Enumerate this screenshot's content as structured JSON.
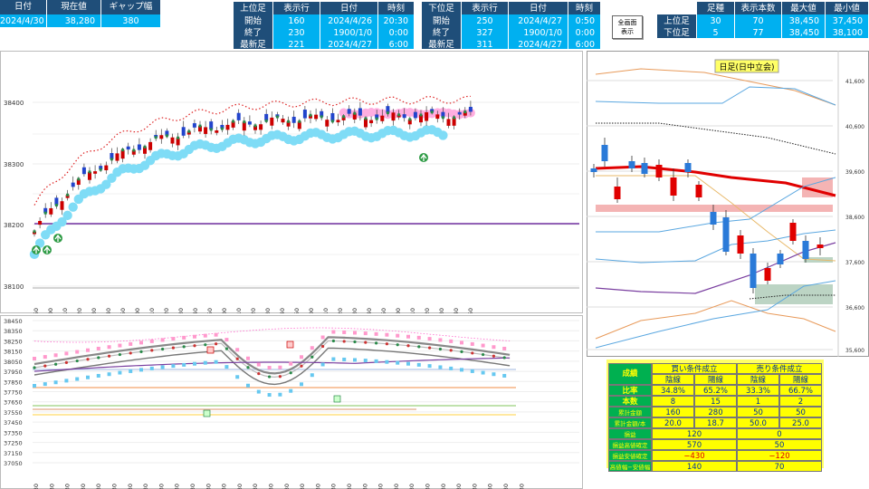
{
  "top_left": {
    "headers": [
      "日付",
      "現在値",
      "ギャップ幅"
    ],
    "values": [
      "2024/4/30",
      "38,280",
      "380"
    ]
  },
  "upper_table": {
    "headers": [
      "上位足",
      "表示行",
      "日付",
      "時刻"
    ],
    "rows": [
      {
        "label": "開始",
        "rows": "160",
        "date": "2024/4/26",
        "time": "20:30"
      },
      {
        "label": "終了",
        "rows": "230",
        "date": "1900/1/0",
        "time": "0:00"
      },
      {
        "label": "最新足",
        "rows": "221",
        "date": "2024/4/27",
        "time": "6:00"
      }
    ]
  },
  "lower_table": {
    "headers": [
      "下位足",
      "表示行",
      "日付",
      "時刻"
    ],
    "rows": [
      {
        "label": "開始",
        "rows": "250",
        "date": "2024/4/27",
        "time": "0:50"
      },
      {
        "label": "終了",
        "rows": "327",
        "date": "1900/1/0",
        "time": "0:00"
      },
      {
        "label": "最新足",
        "rows": "311",
        "date": "2024/4/27",
        "time": "6:00"
      }
    ]
  },
  "mode_button": {
    "line1": "全画面",
    "line2": "表示"
  },
  "summary_table": {
    "headers": [
      "足種",
      "表示本数",
      "最大値",
      "最小値"
    ],
    "rows": [
      {
        "label": "上位足",
        "type": "30",
        "count": "70",
        "max": "38,450",
        "min": "37,450"
      },
      {
        "label": "下位足",
        "type": "5",
        "count": "77",
        "max": "38,450",
        "min": "38,100"
      }
    ]
  },
  "chart_upper": {
    "y_ticks": [
      "38400",
      "38300",
      "38200",
      "38100"
    ],
    "x_ticks": [
      "0:50",
      "1:00",
      "1:10",
      "1:20",
      "1:30",
      "1:40",
      "1:50",
      "2:00",
      "2:10",
      "2:20",
      "2:30",
      "2:40",
      "2:50",
      "3:00",
      "3:10",
      "3:20",
      "3:30",
      "3:40",
      "3:50",
      "4:00",
      "4:10",
      "4:20",
      "4:30",
      "4:40",
      "4:50",
      "5:00",
      "5:10",
      "5:20",
      "5:30",
      "5:40",
      "5:50"
    ],
    "colors": {
      "up": "#cc0000",
      "down": "#2244cc",
      "mid_line": "#7030a0",
      "band_upper": "#ff99dd",
      "band_lower": "#66ddff"
    }
  },
  "chart_lower": {
    "y_ticks": [
      "38450",
      "38350",
      "38250",
      "38150",
      "38050",
      "37950",
      "37850",
      "37750",
      "37650",
      "37550",
      "37450",
      "37350",
      "37250",
      "37150",
      "37050"
    ],
    "x_ticks": [
      "20:30",
      "21:30",
      "22:30",
      "23:30",
      "0:30",
      "1:30",
      "2:30",
      "3:30",
      "4:30",
      "5:30",
      "8:30",
      "9:30",
      "10:30",
      "11:30",
      "12:30",
      "13:30",
      "14:30",
      "15:30",
      "16:30",
      "17:30",
      "18:30",
      "19:30",
      "20:30",
      "21:30",
      "22:30",
      "23:30",
      "0:30",
      "1:30",
      "2:30",
      "3:30",
      "4:30",
      "5:30"
    ]
  },
  "chart_daily": {
    "title": "日足(日中立会)",
    "y_ticks": [
      "41,600",
      "40,600",
      "39,600",
      "38,600",
      "37,600",
      "36,600",
      "35,600"
    ]
  },
  "stats": {
    "title": "成績",
    "buy_header": "買い条件成立",
    "sell_header": "売り条件成立",
    "sub_headers": [
      "陰線",
      "陽線",
      "陰線",
      "陽線"
    ],
    "rows": [
      {
        "label": "比率",
        "values": [
          "34.8%",
          "65.2%",
          "33.3%",
          "66.7%"
        ]
      },
      {
        "label": "本数",
        "values": [
          "8",
          "15",
          "1",
          "2"
        ]
      },
      {
        "label": "累計金額",
        "values": [
          "160",
          "280",
          "50",
          "50"
        ]
      },
      {
        "label": "累計金額/本",
        "values": [
          "20.0",
          "18.7",
          "50.0",
          "25.0"
        ]
      }
    ],
    "merged_rows": [
      {
        "label": "損益",
        "buy": "120",
        "sell": "0",
        "negative": false
      },
      {
        "label": "損益高値確定",
        "buy": "570",
        "sell": "50",
        "negative": false
      },
      {
        "label": "損益安値確定",
        "buy": "−430",
        "sell": "−120",
        "negative": true
      },
      {
        "label": "高値幅−安値幅",
        "buy": "140",
        "sell": "70",
        "negative": false
      }
    ]
  }
}
